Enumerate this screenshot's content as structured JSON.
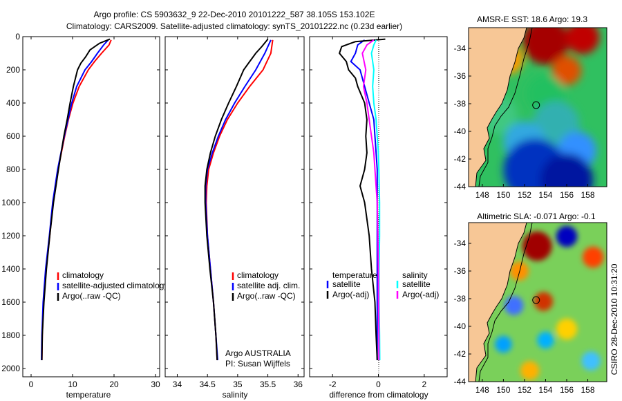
{
  "header": {
    "line1": "Argo profile: CS 5903632_9 22-Dec-2010 20101222_587 38.105S 153.102E",
    "line2": "Climatology: CARS2009. Satellite-adjusted climatology: synTS_20101222.nc (0.23d earlier)"
  },
  "colors": {
    "red": "#ff0000",
    "blue": "#0000ff",
    "black": "#000000",
    "cyan": "#00ffff",
    "magenta": "#ff00ff",
    "land": "#f7c796"
  },
  "chart_data": [
    {
      "type": "line",
      "id": "temperature",
      "xlabel": "temperature",
      "ylabel": "",
      "xlim": [
        -2,
        31
      ],
      "ylim": [
        2050,
        0
      ],
      "xticks": [
        0,
        10,
        20,
        30
      ],
      "yticks": [
        0,
        200,
        400,
        600,
        800,
        1000,
        1200,
        1400,
        1600,
        1800,
        2000
      ],
      "legend": [
        "climatology",
        "satellite-adjusted climatology",
        "Argo(..raw -QC)"
      ],
      "legend_position": "lower-middle",
      "series": [
        {
          "name": "climatology",
          "color": "red",
          "depth": [
            20,
            50,
            100,
            150,
            200,
            300,
            400,
            500,
            600,
            800,
            1000,
            1200,
            1400,
            1600,
            1800,
            1950
          ],
          "values": [
            19.3,
            18.8,
            17.0,
            15.3,
            13.8,
            11.6,
            10.1,
            9.0,
            8.1,
            6.5,
            5.3,
            4.5,
            3.6,
            3.0,
            2.7,
            2.6
          ]
        },
        {
          "name": "satellite-adjusted climatology",
          "color": "blue",
          "depth": [
            20,
            50,
            100,
            150,
            200,
            300,
            400,
            500,
            600,
            800,
            1000,
            1200,
            1400,
            1600,
            1800,
            1950
          ],
          "values": [
            18.6,
            17.5,
            16.0,
            14.6,
            13.0,
            11.0,
            9.8,
            8.9,
            8.0,
            6.4,
            5.2,
            4.4,
            3.5,
            2.9,
            2.6,
            2.5
          ]
        },
        {
          "name": "Argo(..raw -QC)",
          "color": "black",
          "depth": [
            15,
            40,
            80,
            120,
            160,
            200,
            300,
            400,
            500,
            600,
            800,
            1000,
            1200,
            1400,
            1600,
            1800,
            1950
          ],
          "values": [
            19.0,
            16.5,
            14.2,
            13.2,
            12.0,
            11.2,
            10.2,
            9.4,
            8.7,
            7.9,
            6.6,
            5.4,
            4.5,
            3.7,
            3.1,
            2.7,
            2.6
          ]
        }
      ]
    },
    {
      "type": "line",
      "id": "salinity",
      "xlabel": "salinity",
      "ylabel": "",
      "xlim": [
        33.8,
        36.1
      ],
      "ylim": [
        2050,
        0
      ],
      "xticks": [
        34,
        34.5,
        35,
        35.5,
        36
      ],
      "legend": [
        "climatology",
        "satellite adj. clim.",
        "Argo(..raw -QC)"
      ],
      "legend_position": "lower-middle",
      "credit_lines": [
        "Argo AUSTRALIA",
        "PI: Susan Wijffels"
      ],
      "series": [
        {
          "name": "climatology",
          "color": "red",
          "depth": [
            20,
            100,
            200,
            300,
            400,
            500,
            600,
            700,
            800,
            900,
            1000,
            1200,
            1400,
            1600,
            1800,
            1950
          ],
          "values": [
            35.58,
            35.55,
            35.42,
            35.2,
            35.0,
            34.83,
            34.7,
            34.6,
            34.52,
            34.49,
            34.48,
            34.5,
            34.55,
            34.6,
            34.64,
            34.66
          ]
        },
        {
          "name": "satellite adj. clim.",
          "color": "blue",
          "depth": [
            20,
            100,
            200,
            300,
            400,
            500,
            600,
            700,
            800,
            900,
            1000,
            1200,
            1400,
            1600,
            1800,
            1950
          ],
          "values": [
            35.55,
            35.45,
            35.3,
            35.12,
            34.95,
            34.8,
            34.68,
            34.58,
            34.5,
            34.47,
            34.47,
            34.5,
            34.55,
            34.6,
            34.64,
            34.67
          ]
        },
        {
          "name": "Argo(..raw -QC)",
          "color": "black",
          "depth": [
            15,
            60,
            100,
            150,
            200,
            300,
            400,
            500,
            600,
            700,
            800,
            900,
            1000,
            1200,
            1400,
            1600,
            1800,
            1950
          ],
          "values": [
            35.5,
            35.4,
            35.3,
            35.2,
            35.1,
            34.98,
            34.85,
            34.73,
            34.63,
            34.55,
            34.49,
            34.46,
            34.46,
            34.49,
            34.54,
            34.6,
            34.64,
            34.66
          ]
        }
      ]
    },
    {
      "type": "line",
      "id": "difference",
      "xlabel": "difference from climatology",
      "ylabel": "",
      "xlim": [
        -3,
        3
      ],
      "ylim": [
        2050,
        0
      ],
      "xticks": [
        -2,
        0,
        2
      ],
      "legend_left": [
        "temperature",
        "satellite",
        "Argo(-adj)"
      ],
      "legend_right": [
        "salinity",
        "satellite",
        "Argo(-adj)"
      ],
      "legend_position": "lower-middle",
      "series": [
        {
          "name": "temperature satellite",
          "color": "blue",
          "depth": [
            20,
            50,
            100,
            150,
            200,
            300,
            400,
            500,
            600,
            700,
            800,
            1000,
            1200,
            1400,
            1600,
            1800,
            1950
          ],
          "values": [
            -0.6,
            -0.9,
            -1.0,
            -1.2,
            -0.8,
            -0.6,
            -0.4,
            -0.2,
            -0.15,
            -0.1,
            -0.05,
            -0.05,
            -0.05,
            -0.05,
            -0.05,
            -0.05,
            -0.05
          ]
        },
        {
          "name": "temperature Argo(-adj)",
          "color": "black",
          "depth": [
            15,
            30,
            60,
            100,
            150,
            200,
            250,
            300,
            400,
            500,
            600,
            700,
            800,
            900,
            1000,
            1200,
            1400,
            1600,
            1800,
            1950
          ],
          "values": [
            0.3,
            -1.0,
            -1.6,
            -1.7,
            -1.4,
            -1.3,
            -1.0,
            -0.9,
            -0.6,
            -0.5,
            -0.55,
            -0.5,
            -0.6,
            -0.8,
            -0.6,
            -0.4,
            -0.3,
            -0.15,
            -0.1,
            -0.05
          ]
        },
        {
          "name": "salinity satellite",
          "color": "cyan",
          "depth": [
            20,
            50,
            100,
            200,
            300,
            400,
            500,
            600,
            700,
            800,
            1000,
            1200,
            1400,
            1600,
            1800,
            1950
          ],
          "values": [
            -0.1,
            -0.2,
            -0.3,
            -0.2,
            -0.25,
            -0.2,
            -0.1,
            -0.05,
            0.0,
            0.02,
            0.05,
            0.05,
            0.03,
            0.03,
            0.05,
            0.06
          ]
        },
        {
          "name": "salinity Argo(-adj)",
          "color": "magenta",
          "depth": [
            20,
            50,
            100,
            200,
            300,
            400,
            500,
            600,
            700,
            800,
            1000,
            1200,
            1400,
            1600,
            1800,
            1950
          ],
          "values": [
            -0.2,
            -0.5,
            -0.7,
            -0.55,
            -0.65,
            -0.5,
            -0.4,
            -0.3,
            -0.2,
            -0.15,
            -0.05,
            -0.02,
            0.0,
            0.01,
            0.02,
            0.02
          ]
        }
      ]
    },
    {
      "type": "heatmap",
      "id": "sst_map",
      "title": "AMSR-E SST: 18.6 Argo: 19.3",
      "xlim": [
        146.7,
        159.8
      ],
      "ylim": [
        -44,
        -32.5
      ],
      "xticks": [
        148,
        150,
        152,
        154,
        156,
        158
      ],
      "yticks": [
        -34,
        -36,
        -38,
        -40,
        -42,
        -44
      ],
      "marker": {
        "lon": 153.1,
        "lat": -38.1
      },
      "blobs": [
        {
          "lon": 154,
          "lat": -33.5,
          "r": 2.2,
          "color": "#a50000"
        },
        {
          "lon": 157.5,
          "lat": -33.2,
          "r": 1.6,
          "color": "#c00000"
        },
        {
          "lon": 156,
          "lat": -35.6,
          "r": 1.4,
          "color": "#e05000"
        },
        {
          "lon": 150.5,
          "lat": -34.8,
          "r": 1.4,
          "color": "#ff9a00"
        },
        {
          "lon": 154,
          "lat": -37.3,
          "r": 1.8,
          "color": "#20c060"
        },
        {
          "lon": 149.5,
          "lat": -38.8,
          "r": 1.8,
          "color": "#40c880"
        },
        {
          "lon": 155,
          "lat": -39.5,
          "r": 2.2,
          "color": "#30b0b0"
        },
        {
          "lon": 152,
          "lat": -40.8,
          "r": 2.0,
          "color": "#30a8e0"
        },
        {
          "lon": 157,
          "lat": -41.4,
          "r": 1.8,
          "color": "#3090ff"
        },
        {
          "lon": 153,
          "lat": -42.8,
          "r": 3.0,
          "color": "#0030c0"
        },
        {
          "lon": 156,
          "lat": -43.5,
          "r": 2.5,
          "color": "#0018a0"
        }
      ]
    },
    {
      "type": "heatmap",
      "id": "sla_map",
      "title": "Altimetric SLA: -0.071 Argo: -0.1",
      "xlim": [
        146.7,
        159.8
      ],
      "ylim": [
        -44,
        -32.5
      ],
      "xticks": [
        148,
        150,
        152,
        154,
        156,
        158
      ],
      "yticks": [
        -34,
        -36,
        -38,
        -40,
        -42,
        -44
      ],
      "marker": {
        "lon": 153.1,
        "lat": -38.1
      },
      "blobs": [
        {
          "lon": 153.2,
          "lat": -34.2,
          "r": 1.4,
          "color": "#a00000"
        },
        {
          "lon": 156,
          "lat": -33.5,
          "r": 1.0,
          "color": "#0000c0"
        },
        {
          "lon": 158.5,
          "lat": -35,
          "r": 1.0,
          "color": "#ff4000"
        },
        {
          "lon": 151.5,
          "lat": -36,
          "r": 0.9,
          "color": "#ff9000"
        },
        {
          "lon": 153.8,
          "lat": -38.2,
          "r": 0.9,
          "color": "#d03000"
        },
        {
          "lon": 151,
          "lat": -38.5,
          "r": 0.9,
          "color": "#4070ff"
        },
        {
          "lon": 156,
          "lat": -40.2,
          "r": 1.0,
          "color": "#ffd000"
        },
        {
          "lon": 154,
          "lat": -41,
          "r": 0.8,
          "color": "#00b0ff"
        },
        {
          "lon": 150,
          "lat": -41.3,
          "r": 0.8,
          "color": "#00a0ff"
        },
        {
          "lon": 158.3,
          "lat": -42.5,
          "r": 0.9,
          "color": "#40c0ff"
        },
        {
          "lon": 152.5,
          "lat": -43.2,
          "r": 0.9,
          "color": "#ffb000"
        }
      ]
    }
  ],
  "footer": {
    "credit": "CSIRO 28-Dec-2010 10:31:20"
  }
}
